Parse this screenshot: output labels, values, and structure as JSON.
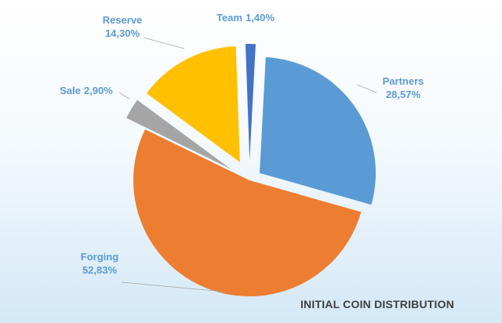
{
  "chart_data": {
    "type": "pie",
    "title": "INITIAL COIN DISTRIBUTION",
    "start_angle_deg": 3,
    "direction": "clockwise",
    "exploded": true,
    "legend": "none",
    "slices": [
      {
        "name": "Partners",
        "value": 28.57,
        "label_name": "Partners",
        "label_value": "28,57%",
        "color": "#5b9bd5"
      },
      {
        "name": "Forging",
        "value": 52.83,
        "label_name": "Forging",
        "label_value": "52,83%",
        "color": "#ed7d31"
      },
      {
        "name": "Sale",
        "value": 2.9,
        "label_name": "Sale",
        "label_value": "2,90%",
        "color": "#a5a5a5"
      },
      {
        "name": "Reserve",
        "value": 14.3,
        "label_name": "Reserve",
        "label_value": "14,30%",
        "color": "#ffc000"
      },
      {
        "name": "Team",
        "value": 1.4,
        "label_name": "Team",
        "label_value": "1,40%",
        "color": "#4472c4"
      }
    ]
  }
}
